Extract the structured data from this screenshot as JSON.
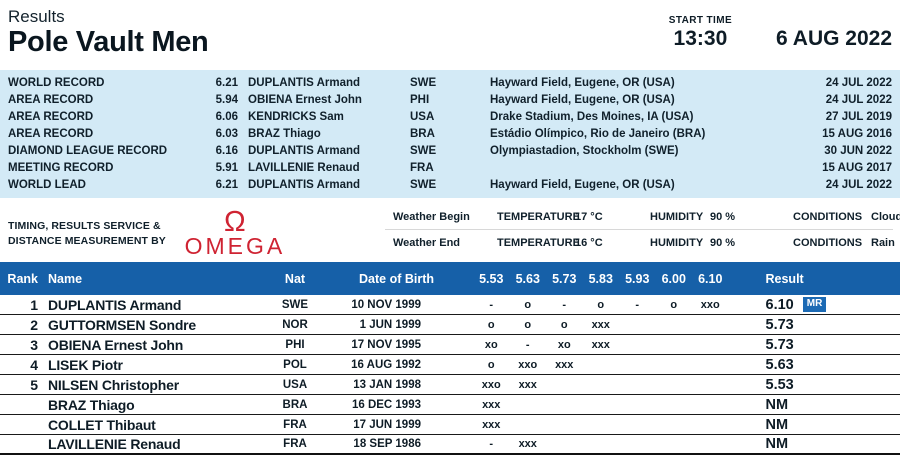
{
  "colors": {
    "accent": "#1660a8",
    "records_bg": "#d3eaf6",
    "brand": "#cf2332",
    "badge": "#1c6ab4"
  },
  "header": {
    "results_label": "Results",
    "event_title": "Pole Vault Men",
    "start_time_label": "START TIME",
    "start_time": "13:30",
    "date": "6 AUG 2022"
  },
  "records": [
    {
      "label": "WORLD RECORD",
      "mark": "6.21",
      "athlete": "DUPLANTIS Armand",
      "nat": "SWE",
      "venue": "Hayward Field, Eugene, OR (USA)",
      "date": "24 JUL 2022"
    },
    {
      "label": "AREA RECORD",
      "mark": "5.94",
      "athlete": "OBIENA Ernest John",
      "nat": "PHI",
      "venue": "Hayward Field, Eugene, OR (USA)",
      "date": "24 JUL 2022"
    },
    {
      "label": "AREA RECORD",
      "mark": "6.06",
      "athlete": "KENDRICKS Sam",
      "nat": "USA",
      "venue": "Drake Stadium, Des Moines, IA (USA)",
      "date": "27 JUL 2019"
    },
    {
      "label": "AREA RECORD",
      "mark": "6.03",
      "athlete": "BRAZ Thiago",
      "nat": "BRA",
      "venue": "Estádio Olímpico, Rio de Janeiro (BRA)",
      "date": "15 AUG 2016"
    },
    {
      "label": "DIAMOND LEAGUE RECORD",
      "mark": "6.16",
      "athlete": "DUPLANTIS Armand",
      "nat": "SWE",
      "venue": "Olympiastadion, Stockholm (SWE)",
      "date": "30 JUN 2022"
    },
    {
      "label": "MEETING RECORD",
      "mark": "5.91",
      "athlete": "LAVILLENIE Renaud",
      "nat": "FRA",
      "venue": "",
      "date": "15 AUG 2017"
    },
    {
      "label": "WORLD LEAD",
      "mark": "6.21",
      "athlete": "DUPLANTIS Armand",
      "nat": "SWE",
      "venue": "Hayward Field, Eugene, OR (USA)",
      "date": "24 JUL 2022"
    }
  ],
  "service": {
    "line1": "TIMING, RESULTS SERVICE &",
    "line2": "DISTANCE MEASUREMENT BY",
    "brand_symbol": "Ω",
    "brand": "OMEGA"
  },
  "weather": {
    "rows": [
      {
        "label": "Weather Begin",
        "temp_label": "TEMPERATURE",
        "temp": "17 °C",
        "humidity_label": "HUMIDITY",
        "humidity": "90 %",
        "conditions_label": "CONDITIONS",
        "conditions": "Cloudy"
      },
      {
        "label": "Weather End",
        "temp_label": "TEMPERATURE",
        "temp": "16 °C",
        "humidity_label": "HUMIDITY",
        "humidity": "90 %",
        "conditions_label": "CONDITIONS",
        "conditions": "Rain"
      }
    ]
  },
  "table": {
    "header": {
      "rank": "Rank",
      "name": "Name",
      "nat": "Nat",
      "dob": "Date of Birth",
      "heights": [
        "5.53",
        "5.63",
        "5.73",
        "5.83",
        "5.93",
        "6.00",
        "6.10"
      ],
      "result": "Result"
    },
    "rows": [
      {
        "rank": "1",
        "name": "DUPLANTIS Armand",
        "nat": "SWE",
        "dob": "10 NOV 1999",
        "attempts": [
          "-",
          "o",
          "-",
          "o",
          "-",
          "o",
          "xxo"
        ],
        "result": "6.10",
        "badge": "MR"
      },
      {
        "rank": "2",
        "name": "GUTTORMSEN Sondre",
        "nat": "NOR",
        "dob": "1 JUN 1999",
        "attempts": [
          "o",
          "o",
          "o",
          "xxx",
          "",
          "",
          ""
        ],
        "result": "5.73",
        "badge": ""
      },
      {
        "rank": "3",
        "name": "OBIENA Ernest John",
        "nat": "PHI",
        "dob": "17 NOV 1995",
        "attempts": [
          "xo",
          "-",
          "xo",
          "xxx",
          "",
          "",
          ""
        ],
        "result": "5.73",
        "badge": ""
      },
      {
        "rank": "4",
        "name": "LISEK Piotr",
        "nat": "POL",
        "dob": "16 AUG 1992",
        "attempts": [
          "o",
          "xxo",
          "xxx",
          "",
          "",
          "",
          ""
        ],
        "result": "5.63",
        "badge": ""
      },
      {
        "rank": "5",
        "name": "NILSEN Christopher",
        "nat": "USA",
        "dob": "13 JAN 1998",
        "attempts": [
          "xxo",
          "xxx",
          "",
          "",
          "",
          "",
          ""
        ],
        "result": "5.53",
        "badge": ""
      },
      {
        "rank": "",
        "name": "BRAZ Thiago",
        "nat": "BRA",
        "dob": "16 DEC 1993",
        "attempts": [
          "xxx",
          "",
          "",
          "",
          "",
          "",
          ""
        ],
        "result": "NM",
        "badge": ""
      },
      {
        "rank": "",
        "name": "COLLET Thibaut",
        "nat": "FRA",
        "dob": "17 JUN 1999",
        "attempts": [
          "xxx",
          "",
          "",
          "",
          "",
          "",
          ""
        ],
        "result": "NM",
        "badge": ""
      },
      {
        "rank": "",
        "name": "LAVILLENIE Renaud",
        "nat": "FRA",
        "dob": "18 SEP 1986",
        "attempts": [
          "-",
          "xxx",
          "",
          "",
          "",
          "",
          ""
        ],
        "result": "NM",
        "badge": ""
      }
    ]
  }
}
